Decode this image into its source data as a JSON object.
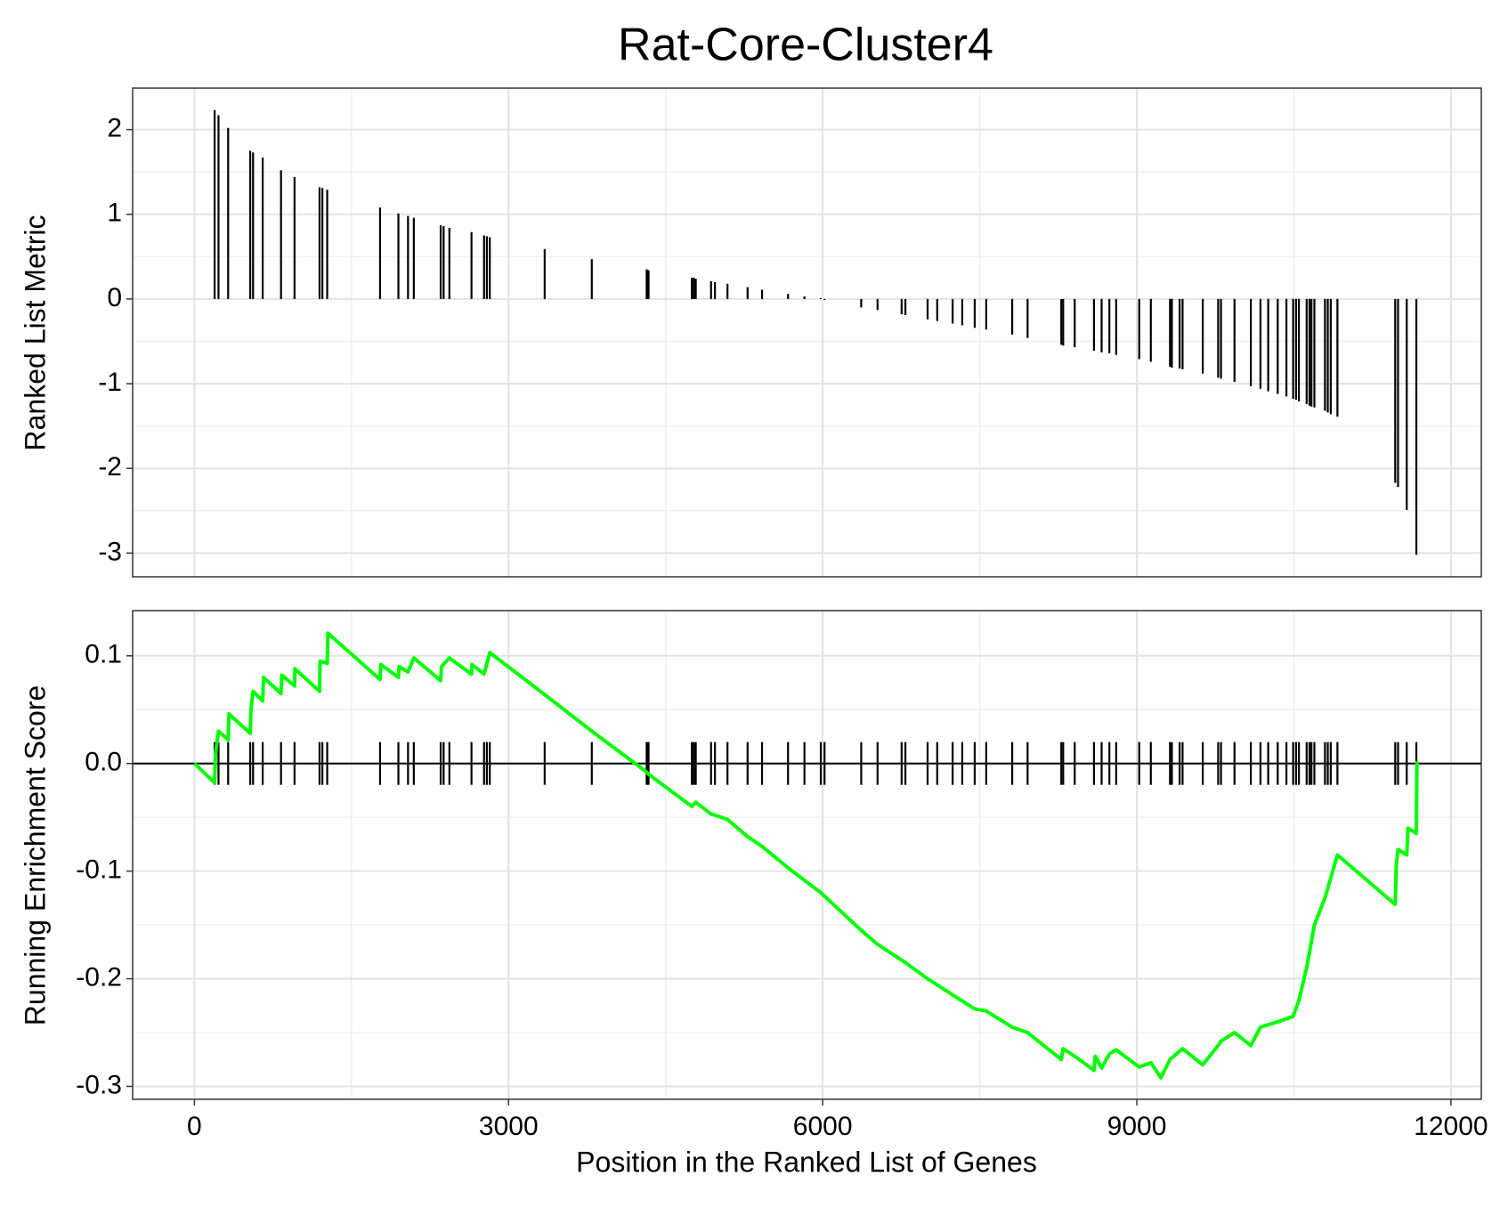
{
  "chart_data": [
    {
      "type": "bar",
      "title": "Rat-Core-Cluster4",
      "ylabel": "Ranked List Metric",
      "x": [
        193,
        230,
        322,
        533,
        560,
        652,
        827,
        956,
        1195,
        1222,
        1268,
        1773,
        1948,
        2040,
        2095,
        2352,
        2380,
        2435,
        2646,
        2766,
        2793,
        2821,
        3345,
        3795,
        4319,
        4337,
        4751,
        4769,
        4788,
        4934,
        4971,
        5091,
        5283,
        5421,
        5669,
        5826,
        5982,
        6018,
        6368,
        6524,
        6754,
        6790,
        7002,
        7094,
        7241,
        7333,
        7452,
        7562,
        7810,
        7957,
        8279,
        8297,
        8407,
        8591,
        8664,
        8738,
        8803,
        9023,
        9134,
        9317,
        9335,
        9409,
        9437,
        9630,
        9777,
        9804,
        9933,
        10089,
        10181,
        10255,
        10346,
        10429,
        10493,
        10521,
        10548,
        10622,
        10649,
        10668,
        10696,
        10797,
        10824,
        10852,
        10916,
        11468,
        11495,
        11578,
        11670
      ],
      "values": [
        2.23,
        2.17,
        2.02,
        1.75,
        1.73,
        1.67,
        1.52,
        1.44,
        1.32,
        1.31,
        1.29,
        1.08,
        1.01,
        0.98,
        0.96,
        0.87,
        0.86,
        0.84,
        0.79,
        0.75,
        0.74,
        0.73,
        0.59,
        0.47,
        0.35,
        0.34,
        0.25,
        0.25,
        0.24,
        0.21,
        0.2,
        0.18,
        0.14,
        0.11,
        0.06,
        0.03,
        0.01,
        -0.01,
        -0.1,
        -0.13,
        -0.18,
        -0.19,
        -0.24,
        -0.26,
        -0.29,
        -0.31,
        -0.34,
        -0.36,
        -0.42,
        -0.46,
        -0.54,
        -0.55,
        -0.57,
        -0.61,
        -0.63,
        -0.64,
        -0.66,
        -0.71,
        -0.74,
        -0.8,
        -0.81,
        -0.82,
        -0.83,
        -0.88,
        -0.93,
        -0.94,
        -0.98,
        -1.03,
        -1.06,
        -1.09,
        -1.12,
        -1.15,
        -1.18,
        -1.19,
        -1.21,
        -1.24,
        -1.26,
        -1.27,
        -1.28,
        -1.32,
        -1.34,
        -1.36,
        -1.39,
        -2.17,
        -2.22,
        -2.49,
        -3.02
      ],
      "color": "#000000",
      "xlim": [
        -590,
        12290
      ],
      "xticks": [
        0,
        3000,
        6000,
        9000,
        12000
      ],
      "ylim": [
        -3.28,
        2.49
      ],
      "yticks": [
        2,
        1,
        0,
        -1,
        -2,
        -3
      ],
      "grid": true
    },
    {
      "type": "line",
      "ylabel": "Running Enrichment Score",
      "xlabel": "Position in the Ranked List of Genes",
      "x": [
        0,
        193,
        200,
        230,
        322,
        330,
        533,
        540,
        560,
        652,
        660,
        827,
        835,
        956,
        960,
        1195,
        1200,
        1268,
        1275,
        1773,
        1780,
        1948,
        1955,
        2040,
        2095,
        2352,
        2360,
        2435,
        2646,
        2650,
        2766,
        2821,
        3345,
        3795,
        4319,
        4337,
        4751,
        4788,
        4934,
        4971,
        5091,
        5283,
        5421,
        5669,
        5982,
        6368,
        6524,
        6790,
        7002,
        7241,
        7452,
        7562,
        7810,
        7957,
        8279,
        8297,
        8407,
        8591,
        8604,
        8664,
        8738,
        8803,
        9023,
        9134,
        9230,
        9317,
        9437,
        9630,
        9777,
        9804,
        9933,
        10089,
        10181,
        10348,
        10493,
        10548,
        10622,
        10696,
        10797,
        10916,
        11468,
        11478,
        11495,
        11578,
        11590,
        11670,
        11675
      ],
      "values": [
        0,
        -0.018,
        0.008,
        0.03,
        0.022,
        0.046,
        0.028,
        0.05,
        0.067,
        0.058,
        0.08,
        0.065,
        0.082,
        0.072,
        0.088,
        0.067,
        0.095,
        0.093,
        0.121,
        0.078,
        0.092,
        0.08,
        0.09,
        0.085,
        0.098,
        0.077,
        0.09,
        0.098,
        0.083,
        0.092,
        0.083,
        0.103,
        0.064,
        0.03,
        -0.008,
        -0.01,
        -0.04,
        -0.036,
        -0.047,
        -0.048,
        -0.052,
        -0.068,
        -0.077,
        -0.097,
        -0.12,
        -0.155,
        -0.168,
        -0.185,
        -0.2,
        -0.215,
        -0.228,
        -0.23,
        -0.245,
        -0.25,
        -0.275,
        -0.265,
        -0.272,
        -0.285,
        -0.272,
        -0.283,
        -0.27,
        -0.266,
        -0.282,
        -0.278,
        -0.292,
        -0.275,
        -0.265,
        -0.28,
        -0.262,
        -0.258,
        -0.25,
        -0.262,
        -0.245,
        -0.24,
        -0.235,
        -0.22,
        -0.19,
        -0.15,
        -0.125,
        -0.085,
        -0.131,
        -0.095,
        -0.08,
        -0.085,
        -0.06,
        -0.065,
        0.002
      ],
      "color": "#00ff00",
      "reference_line": 0,
      "xlim": [
        -590,
        12290
      ],
      "xticks": [
        0,
        3000,
        6000,
        9000,
        12000
      ],
      "ylim": [
        -0.312,
        0.142
      ],
      "yticks": [
        0.1,
        {
          "value": 0,
          "label": "0.0"
        },
        -0.1,
        -0.2,
        -0.3
      ],
      "grid": true
    }
  ]
}
